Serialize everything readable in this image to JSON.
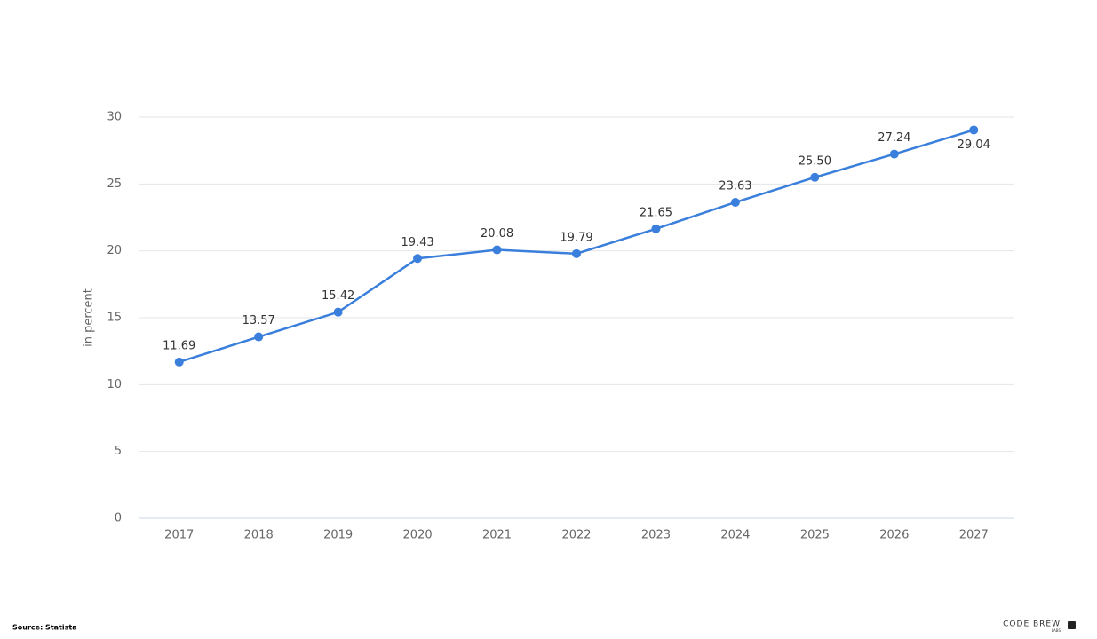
{
  "chart_data": {
    "type": "line",
    "y_label": "in percent",
    "categories": [
      "2017",
      "2018",
      "2019",
      "2020",
      "2021",
      "2022",
      "2023",
      "2024",
      "2025",
      "2026",
      "2027"
    ],
    "values": [
      11.69,
      13.57,
      15.42,
      19.43,
      20.08,
      19.79,
      21.65,
      23.63,
      25.5,
      27.24,
      29.04
    ],
    "value_labels": [
      "11.69",
      "13.57",
      "15.42",
      "19.43",
      "20.08",
      "19.79",
      "21.65",
      "23.63",
      "25.50",
      "27.24",
      "29.04"
    ],
    "color": "#3a7fdb",
    "ylim": [
      0,
      30
    ],
    "yticks": [
      0,
      5,
      10,
      15,
      20,
      25,
      30
    ],
    "grid": true
  },
  "footer": {
    "source": "Source: Statista",
    "logo": "CODE BREW",
    "logo_sub": "LABS"
  }
}
